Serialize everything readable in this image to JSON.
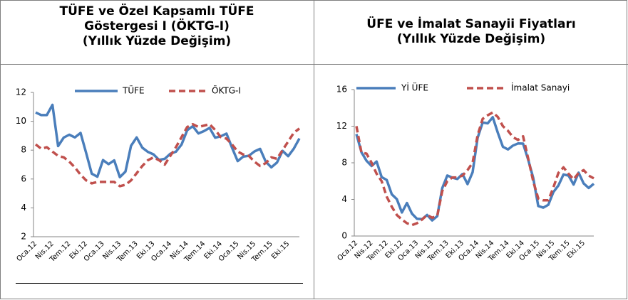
{
  "chart_data": [
    {
      "type": "line",
      "title": "TÜFE ve Özel Kapsamlı TÜFE Göstergesi I (ÖKTG-I)",
      "subtitle": "(Yıllık Yüzde Değişim)",
      "categories": [
        "Oca.12",
        null,
        null,
        "Nis.12",
        null,
        null,
        "Tem.12",
        null,
        null,
        "Eki.12",
        null,
        null,
        "Oca.13",
        null,
        null,
        "Nis.13",
        null,
        null,
        "Tem.13",
        null,
        null,
        "Eki.13",
        null,
        null,
        "Oca.14",
        null,
        null,
        "Nis.14",
        null,
        null,
        "Tem.14",
        null,
        null,
        "Eki.14",
        null,
        null,
        "Oca.15",
        null,
        null,
        "Nis.15",
        null,
        null,
        "Tem.15",
        null,
        null,
        "Eki.15",
        null,
        null
      ],
      "series": [
        {
          "name": "TÜFE",
          "color": "#4a7ebb",
          "dashed": false,
          "values": [
            10.61,
            10.43,
            10.43,
            11.14,
            8.28,
            8.87,
            9.07,
            8.88,
            9.19,
            7.8,
            6.37,
            6.16,
            7.31,
            7.03,
            7.29,
            6.13,
            6.51,
            8.3,
            8.88,
            8.17,
            7.88,
            7.71,
            7.32,
            7.4,
            7.75,
            7.89,
            8.39,
            9.38,
            9.66,
            9.16,
            9.32,
            9.54,
            8.86,
            8.96,
            9.15,
            8.17,
            7.24,
            7.55,
            7.61,
            7.91,
            8.09,
            7.2,
            6.81,
            7.14,
            7.95,
            7.58,
            8.1,
            8.81
          ]
        },
        {
          "name": "ÖKTG-I",
          "color": "#c0504d",
          "dashed": true,
          "values": [
            8.4,
            8.1,
            8.2,
            7.9,
            7.6,
            7.5,
            7.2,
            6.8,
            6.3,
            5.9,
            5.7,
            5.8,
            5.8,
            5.8,
            5.8,
            5.5,
            5.6,
            5.9,
            6.4,
            6.9,
            7.3,
            7.5,
            7.3,
            7.0,
            7.6,
            8.2,
            8.9,
            9.6,
            9.8,
            9.6,
            9.7,
            9.8,
            9.4,
            8.9,
            8.8,
            8.4,
            7.9,
            7.7,
            7.6,
            7.2,
            6.9,
            7.1,
            7.5,
            7.4,
            8.0,
            8.6,
            9.2,
            9.5
          ]
        }
      ],
      "ylim": [
        2,
        12
      ],
      "yticks": [
        2,
        4,
        6,
        8,
        10,
        12
      ],
      "grid": false
    },
    {
      "type": "line",
      "title": "ÜFE ve İmalat Sanayii Fiyatları",
      "subtitle": "(Yıllık Yüzde Değişim)",
      "categories": [
        "Oca.12",
        null,
        null,
        "Nis.12",
        null,
        null,
        "Tem.12",
        null,
        null,
        "Eki.12",
        null,
        null,
        "Oca.13",
        null,
        null,
        "Nis.13",
        null,
        null,
        "Tem.13",
        null,
        null,
        "Eki.13",
        null,
        null,
        "Oca.14",
        null,
        null,
        "Nis.14",
        null,
        null,
        "Tem.14",
        null,
        null,
        "Eki.14",
        null,
        null,
        "Oca.15",
        null,
        null,
        "Nis.15",
        null,
        null,
        "Tem.15",
        null,
        null,
        "Eki.15",
        null,
        null
      ],
      "series": [
        {
          "name": "Yİ ÜFE",
          "color": "#4a7ebb",
          "dashed": false,
          "values": [
            11.13,
            9.15,
            8.22,
            7.65,
            8.14,
            6.44,
            6.13,
            4.56,
            4.03,
            2.57,
            3.6,
            2.45,
            1.88,
            1.84,
            2.3,
            1.7,
            2.17,
            5.23,
            6.61,
            6.38,
            6.23,
            6.77,
            5.67,
            6.97,
            10.72,
            12.4,
            12.31,
            12.98,
            11.28,
            9.75,
            9.46,
            9.88,
            10.11,
            10.1,
            8.36,
            6.36,
            3.28,
            3.1,
            3.41,
            4.8,
            5.52,
            6.73,
            6.6,
            5.62,
            6.92,
            5.74,
            5.25,
            5.71
          ]
        },
        {
          "name": "İmalat Sanayi",
          "color": "#c0504d",
          "dashed": true,
          "values": [
            12.0,
            9.1,
            9.0,
            8.0,
            6.8,
            6.0,
            4.3,
            3.2,
            2.3,
            1.8,
            1.4,
            1.2,
            1.4,
            1.8,
            2.3,
            2.0,
            2.2,
            4.9,
            6.0,
            6.4,
            6.4,
            6.6,
            7.2,
            8.0,
            11.0,
            12.8,
            13.2,
            13.5,
            13.0,
            12.0,
            11.5,
            10.8,
            10.5,
            10.9,
            8.5,
            6.0,
            4.1,
            3.9,
            3.9,
            5.3,
            6.9,
            7.5,
            6.8,
            6.2,
            6.9,
            7.2,
            6.6,
            6.3
          ]
        }
      ],
      "ylim": [
        0,
        16
      ],
      "yticks": [
        0,
        4,
        8,
        12,
        16
      ],
      "grid": false
    }
  ]
}
